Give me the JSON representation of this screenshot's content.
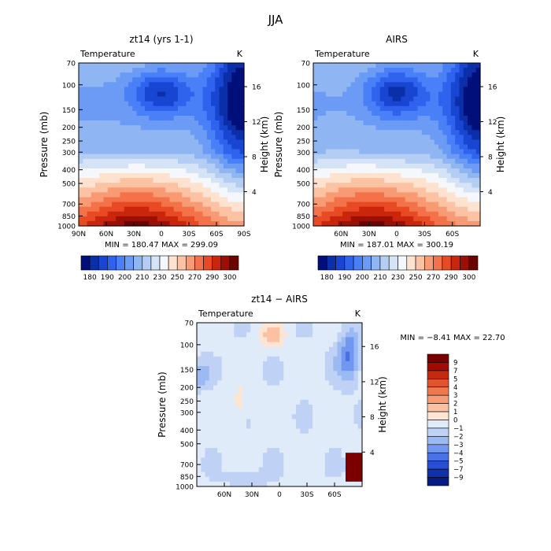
{
  "page": {
    "season": "JJA"
  },
  "chart_data": [
    {
      "type": "heatmap",
      "title": "zt14 (yrs 1-1)",
      "subtitle_left": "Temperature",
      "subtitle_right": "K",
      "ylabel": "Pressure (mb)",
      "ylabel_right": "Height (km)",
      "x_ticks": [
        "90N",
        "60N",
        "30N",
        "0",
        "30S",
        "60S",
        "90S"
      ],
      "y_ticks": [
        "70",
        "100",
        "150",
        "200",
        "250",
        "300",
        "400",
        "500",
        "700",
        "850",
        "1000"
      ],
      "y2_ticks": [
        "16",
        "12",
        "8",
        "4"
      ],
      "stats": "MIN = 180.47   MAX = 299.09",
      "colorbar_labels": [
        "180",
        "190",
        "200",
        "210",
        "230",
        "250",
        "270",
        "290",
        "300"
      ]
    },
    {
      "type": "heatmap",
      "title": "AIRS",
      "subtitle_left": "Temperature",
      "subtitle_right": "K",
      "ylabel": "Pressure (mb)",
      "ylabel_right": "Height (km)",
      "x_ticks": [
        "60N",
        "30N",
        "0",
        "30S",
        "60S"
      ],
      "y_ticks": [
        "70",
        "100",
        "150",
        "200",
        "250",
        "300",
        "400",
        "500",
        "700",
        "850",
        "1000"
      ],
      "y2_ticks": [
        "16",
        "12",
        "8",
        "4"
      ],
      "stats": "MIN = 187.01   MAX = 300.19",
      "colorbar_labels": [
        "180",
        "190",
        "200",
        "210",
        "230",
        "250",
        "270",
        "290",
        "300"
      ]
    },
    {
      "type": "heatmap",
      "title": "zt14 − AIRS",
      "subtitle_left": "Temperature",
      "subtitle_right": "K",
      "ylabel": "Pressure (mb)",
      "ylabel_right": "Height (km)",
      "x_ticks": [
        "60N",
        "30N",
        "0",
        "30S",
        "60S"
      ],
      "y_ticks": [
        "70",
        "100",
        "150",
        "200",
        "250",
        "300",
        "400",
        "500",
        "700",
        "850",
        "1000"
      ],
      "y2_ticks": [
        "16",
        "12",
        "8",
        "4"
      ],
      "stats": "MIN =   −8.41   MAX =   22.70",
      "colorbar_labels": [
        "9",
        "7",
        "5",
        "4",
        "3",
        "2",
        "1",
        "0",
        "−1",
        "−2",
        "−3",
        "−4",
        "−5",
        "−7",
        "−9"
      ]
    }
  ],
  "colors": {
    "abs_scale": [
      "#000f7a",
      "#0a2fa8",
      "#1846d2",
      "#2f63ee",
      "#4a80f7",
      "#6c9bf5",
      "#8fb6f3",
      "#b4cdf4",
      "#d5e3f6",
      "#f4f7fb",
      "#fde2d0",
      "#fbc3a4",
      "#f89a73",
      "#f4724a",
      "#e84a24",
      "#c9260d",
      "#9a1004",
      "#6a0400"
    ],
    "diff_scale": [
      "#7a0000",
      "#a30b02",
      "#c42a10",
      "#e0542e",
      "#f0784d",
      "#f79c76",
      "#fbc1a2",
      "#fde4d3",
      "#e0ebf9",
      "#bfd2f5",
      "#9bb9f3",
      "#7297f0",
      "#4a72e6",
      "#2a4ed2",
      "#1131ab",
      "#071c80"
    ]
  }
}
